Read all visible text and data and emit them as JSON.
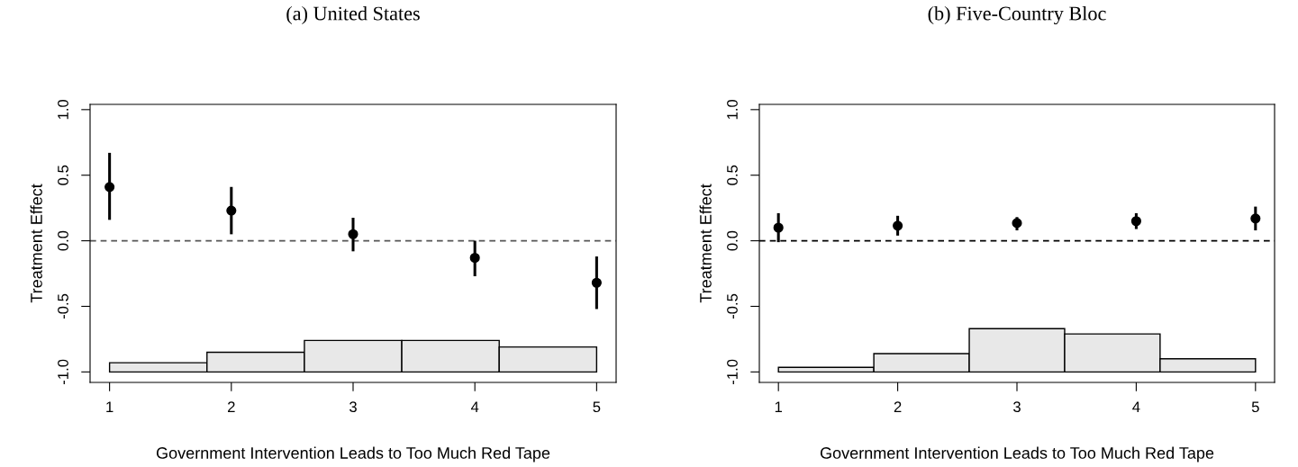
{
  "chart_data": [
    {
      "type": "scatter",
      "title": "(a) United States",
      "xlabel": "Government Intervention Leads to Too Much Red Tape",
      "ylabel": "Treatment Effect",
      "xlim": [
        0.84,
        5.16
      ],
      "ylim": [
        -1.08,
        1.04
      ],
      "xticks": [
        1,
        2,
        3,
        4,
        5
      ],
      "yticks": [
        {
          "value": -1.0,
          "label": "-1.0"
        },
        {
          "value": -0.5,
          "label": "-0.5"
        },
        {
          "value": 0,
          "label": "0.0"
        },
        {
          "value": 0.5,
          "label": "0.5"
        },
        {
          "value": 1.0,
          "label": "1.0"
        }
      ],
      "grid": false,
      "legend": false,
      "marker": "circle",
      "ref_lines": [
        {
          "axis": "y",
          "value": 0,
          "color": "#555555",
          "line_style": "dashed"
        }
      ],
      "series": [
        {
          "type": "histogram",
          "color": "#e8e8e8",
          "bins": [
            1,
            1.8,
            2.6,
            3.4,
            4.2,
            5
          ],
          "base": [
            -1,
            -1,
            -1,
            -1,
            -1
          ],
          "values": [
            0.07,
            0.15,
            0.24,
            0.24,
            0.19
          ]
        },
        {
          "color": "#000000",
          "x": [
            1,
            2,
            3,
            4,
            5
          ],
          "values": [
            0.41,
            0.23,
            0.05,
            -0.13,
            -0.32
          ],
          "errors": [
            [
              0.17,
              0.66
            ],
            [
              0.06,
              0.4
            ],
            [
              -0.07,
              0.165
            ],
            [
              -0.26,
              -0.01
            ],
            [
              -0.51,
              -0.13
            ]
          ]
        }
      ]
    },
    {
      "type": "scatter",
      "title": "(b) Five-Country Bloc",
      "xlabel": "Government Intervention Leads to Too Much Red Tape",
      "ylabel": "Treatment Effect",
      "xlim": [
        0.84,
        5.16
      ],
      "ylim": [
        -1.08,
        1.04
      ],
      "xticks": [
        1,
        2,
        3,
        4,
        5
      ],
      "yticks": [
        {
          "value": -1.0,
          "label": "-1.0"
        },
        {
          "value": -0.5,
          "label": "-0.5"
        },
        {
          "value": 0,
          "label": "0.0"
        },
        {
          "value": 0.5,
          "label": "0.5"
        },
        {
          "value": 1.0,
          "label": "1.0"
        }
      ],
      "grid": false,
      "legend": false,
      "marker": "circle",
      "ref_lines": [
        {
          "axis": "y",
          "value": 0,
          "color": "#000000",
          "line_style": "dashed"
        }
      ],
      "series": [
        {
          "type": "histogram",
          "color": "#e8e8e8",
          "bins": [
            1,
            1.8,
            2.6,
            3.4,
            4.2,
            5
          ],
          "base": [
            -1,
            -1,
            -1,
            -1,
            -1
          ],
          "values": [
            0.035,
            0.14,
            0.33,
            0.29,
            0.1
          ]
        },
        {
          "color": "#000000",
          "x": [
            1,
            2,
            3,
            4,
            5
          ],
          "values": [
            0.1,
            0.115,
            0.135,
            0.15,
            0.17
          ],
          "errors": [
            [
              0.0,
              0.2
            ],
            [
              0.05,
              0.18
            ],
            [
              0.09,
              0.17
            ],
            [
              0.1,
              0.2
            ],
            [
              0.09,
              0.25
            ]
          ]
        }
      ]
    }
  ]
}
